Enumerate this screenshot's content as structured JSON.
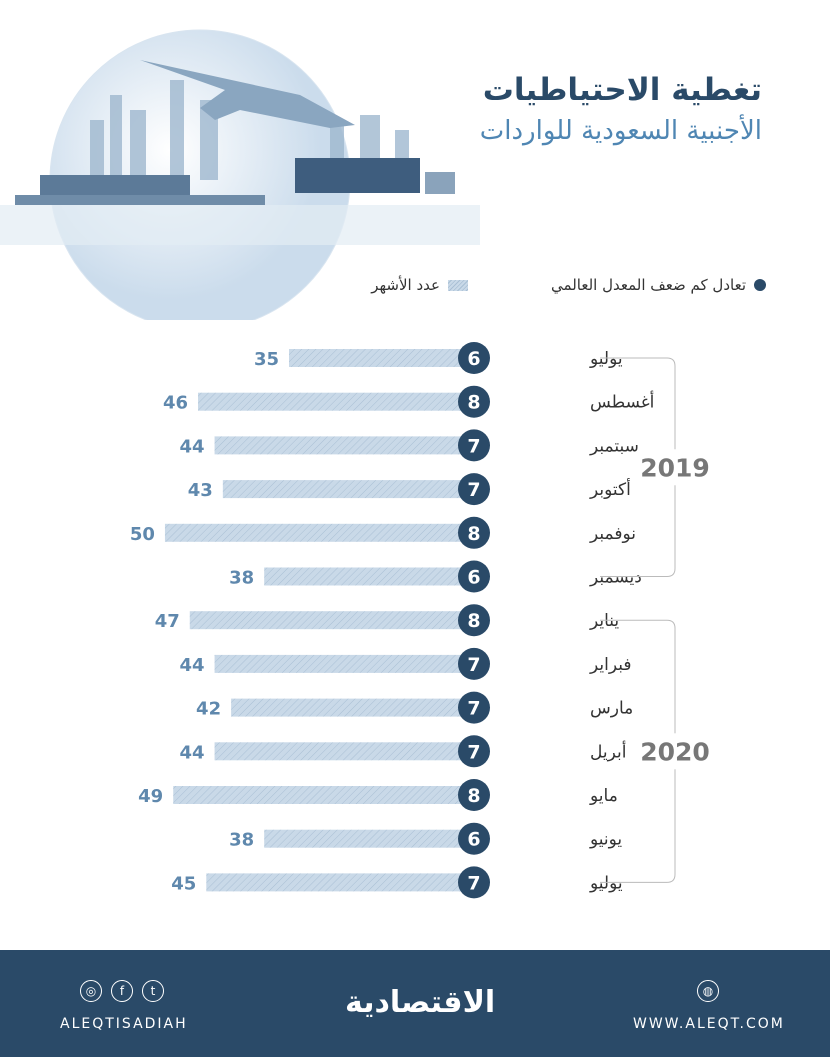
{
  "title_line1": "تغطية الاحتياطيات",
  "title_line2": "الأجنبية السعودية للواردات",
  "legend": {
    "circles": "تعادل كم ضعف المعدل العالمي",
    "bars": "عدد الأشهر"
  },
  "colors": {
    "dark": "#2a4a68",
    "value_text": "#5f88ad",
    "bar": "#c9d9e8"
  },
  "chart_data": {
    "type": "bar",
    "orientation": "horizontal",
    "categories": [
      "يوليو",
      "أغسطس",
      "سبتمبر",
      "أكتوبر",
      "نوفمبر",
      "ديسمبر",
      "يناير",
      "فبراير",
      "مارس",
      "أبريل",
      "مايو",
      "يونيو",
      "يوليو"
    ],
    "groups": [
      {
        "label": "2019",
        "count": 6
      },
      {
        "label": "2020",
        "count": 7
      }
    ],
    "series": [
      {
        "name": "عدد الأشهر",
        "values": [
          35,
          46,
          44,
          43,
          50,
          38,
          47,
          44,
          42,
          44,
          49,
          38,
          45
        ]
      },
      {
        "name": "تعادل كم ضعف المعدل العالمي",
        "values": [
          6,
          8,
          7,
          7,
          8,
          6,
          8,
          7,
          7,
          7,
          8,
          6,
          7
        ]
      }
    ]
  },
  "footer": {
    "social": "ALEQTISADIAH",
    "logo": "الاقتصادية",
    "website": "WWW.ALEQT.COM",
    "icons": [
      "instagram-icon",
      "facebook-icon",
      "twitter-icon",
      "globe-icon"
    ]
  }
}
